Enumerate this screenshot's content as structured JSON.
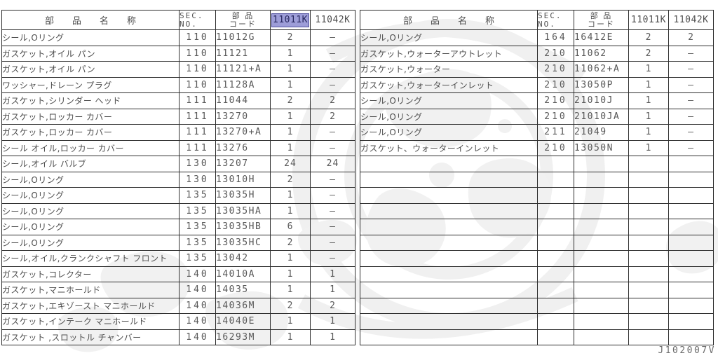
{
  "footer": {
    "code": "J102007V"
  },
  "colors": {
    "highlight_fill": "#9d9dd8",
    "highlight_border": "#50509e",
    "table_border": "#2e2e2e",
    "text": "#4e4e4e",
    "watermark": "#f1f1f1"
  },
  "column_headers": {
    "part_name": "部品名称",
    "sec_no": [
      "SEC.",
      "NO."
    ],
    "part_code": [
      "部 品",
      "コード"
    ],
    "code1": "11011K",
    "code2": "11042K"
  },
  "tables": [
    {
      "id": "left",
      "highlighted_header": "code1",
      "empty_rows": 0,
      "rows": [
        {
          "name": "シール,Oリング",
          "sec": "110",
          "code": "11012G",
          "qty1": "2",
          "qty2": "–"
        },
        {
          "name": "ガスケット,オイル パン",
          "sec": "110",
          "code": "11121",
          "qty1": "1",
          "qty2": "–"
        },
        {
          "name": "ガスケット,オイル パン",
          "sec": "110",
          "code": "11121+A",
          "qty1": "1",
          "qty2": "–"
        },
        {
          "name": "ワッシャー,ドレーン プラグ",
          "sec": "110",
          "code": "11128A",
          "qty1": "1",
          "qty2": "–"
        },
        {
          "name": "ガスケット,シリンダー ヘッド",
          "sec": "111",
          "code": "11044",
          "qty1": "2",
          "qty2": "2"
        },
        {
          "name": "ガスケット,ロッカー カバー",
          "sec": "111",
          "code": "13270",
          "qty1": "1",
          "qty2": "2"
        },
        {
          "name": "ガスケット,ロッカー カバー",
          "sec": "111",
          "code": "13270+A",
          "qty1": "1",
          "qty2": "–"
        },
        {
          "name": "シール オイル,ロッカー カバー",
          "sec": "111",
          "code": "13276",
          "qty1": "1",
          "qty2": "–"
        },
        {
          "name": "シール,オイル バルブ",
          "sec": "130",
          "code": "13207",
          "qty1": "24",
          "qty2": "24"
        },
        {
          "name": "シール,Oリング",
          "sec": "130",
          "code": "13010H",
          "qty1": "2",
          "qty2": "–"
        },
        {
          "name": "シール,Oリング",
          "sec": "135",
          "code": "13035H",
          "qty1": "1",
          "qty2": "–"
        },
        {
          "name": "シール,Oリング",
          "sec": "135",
          "code": "13035HA",
          "qty1": "1",
          "qty2": "–"
        },
        {
          "name": "シール,Oリング",
          "sec": "135",
          "code": "13035HB",
          "qty1": "6",
          "qty2": "–"
        },
        {
          "name": "シール,Oリング",
          "sec": "135",
          "code": "13035HC",
          "qty1": "2",
          "qty2": "–"
        },
        {
          "name": "シール,オイル,クランクシャフト フロント",
          "sec": "135",
          "code": "13042",
          "qty1": "1",
          "qty2": "–"
        },
        {
          "name": "ガスケット,コレクター",
          "sec": "140",
          "code": "14010A",
          "qty1": "1",
          "qty2": "1"
        },
        {
          "name": "ガスケット,マニホールド",
          "sec": "140",
          "code": "14035",
          "qty1": "1",
          "qty2": "1"
        },
        {
          "name": "ガスケット,エキゾースト マニホールド",
          "sec": "140",
          "code": "14036M",
          "qty1": "2",
          "qty2": "2"
        },
        {
          "name": "ガスケット,インテーク マニホールド",
          "sec": "140",
          "code": "14040E",
          "qty1": "1",
          "qty2": "1"
        },
        {
          "name": "ガスケット ,スロットル チャンバー",
          "sec": "140",
          "code": "16293M",
          "qty1": "1",
          "qty2": "1"
        }
      ]
    },
    {
      "id": "right",
      "highlighted_header": null,
      "empty_rows": 12,
      "rows": [
        {
          "name": "シール,Oリング",
          "sec": "164",
          "code": "16412E",
          "qty1": "2",
          "qty2": "2"
        },
        {
          "name": "ガスケット,ウォーターアウトレット",
          "sec": "210",
          "code": "11062",
          "qty1": "2",
          "qty2": "–"
        },
        {
          "name": "ガスケット,ウォーター",
          "sec": "210",
          "code": "11062+A",
          "qty1": "1",
          "qty2": "–"
        },
        {
          "name": "ガスケット,ウォーターインレット",
          "sec": "210",
          "code": "13050P",
          "qty1": "1",
          "qty2": "–"
        },
        {
          "name": "シール,Oリング",
          "sec": "210",
          "code": "21010J",
          "qty1": "1",
          "qty2": "–"
        },
        {
          "name": "シール,Oリング",
          "sec": "210",
          "code": "21010JA",
          "qty1": "1",
          "qty2": "–"
        },
        {
          "name": "シール,Oリング",
          "sec": "211",
          "code": "21049",
          "qty1": "1",
          "qty2": "–"
        },
        {
          "name": "ガスケット、ウォーターインレット",
          "sec": "210",
          "code": "13050N",
          "qty1": "1",
          "qty2": "–"
        }
      ]
    }
  ]
}
